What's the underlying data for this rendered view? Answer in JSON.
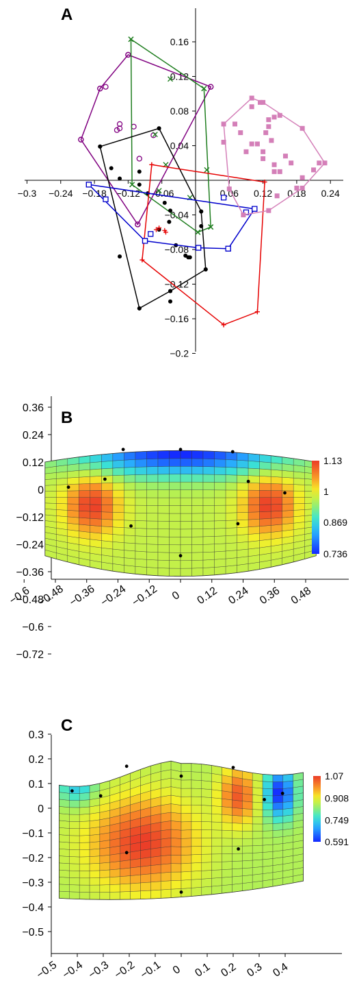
{
  "panels": {
    "a": "A",
    "b": "B",
    "c": "C"
  },
  "chart_data": [
    {
      "panel": "A",
      "type": "scatter",
      "xlim": [
        -0.3,
        0.3
      ],
      "ylim": [
        -0.2,
        0.2
      ],
      "x_ticks": [
        "−0.3",
        "−0.24",
        "−0.18",
        "−0.12",
        "−0.06",
        "0.06",
        "0.12",
        "0.18",
        "0.24"
      ],
      "x_tick_values": [
        -0.3,
        -0.24,
        -0.18,
        -0.12,
        -0.06,
        0.06,
        0.12,
        0.18,
        0.24
      ],
      "y_ticks": [
        "0.16",
        "0.12",
        "0.08",
        "0.04",
        "−0.04",
        "−0.08",
        "−0.12",
        "−0.16",
        "−0.2"
      ],
      "y_tick_values": [
        0.16,
        0.12,
        0.08,
        0.04,
        -0.04,
        -0.08,
        -0.12,
        -0.16,
        -0.2
      ],
      "series": [
        {
          "color": "#800080",
          "marker": "circle-open",
          "points": [
            [
              -0.204,
              0.047
            ],
            [
              -0.17,
              0.106
            ],
            [
              -0.16,
              0.108
            ],
            [
              -0.12,
              0.145
            ],
            [
              -0.14,
              0.058
            ],
            [
              -0.135,
              0.06
            ],
            [
              -0.135,
              0.065
            ],
            [
              -0.11,
              0.062
            ],
            [
              -0.1,
              0.025
            ],
            [
              -0.075,
              0.052
            ],
            [
              -0.103,
              -0.051
            ],
            [
              0.027,
              0.108
            ]
          ],
          "hull": [
            [
              -0.204,
              0.047
            ],
            [
              -0.17,
              0.106
            ],
            [
              -0.12,
              0.145
            ],
            [
              0.027,
              0.108
            ],
            [
              -0.103,
              -0.051
            ]
          ]
        },
        {
          "color": "#1e7d1e",
          "marker": "x",
          "points": [
            [
              -0.115,
              0.163
            ],
            [
              -0.045,
              0.117
            ],
            [
              0.015,
              0.106
            ],
            [
              -0.072,
              0.053
            ],
            [
              -0.053,
              0.018
            ],
            [
              -0.113,
              -0.005
            ],
            [
              -0.065,
              -0.012
            ],
            [
              -0.01,
              -0.02
            ],
            [
              0.02,
              0.012
            ],
            [
              0.027,
              -0.054
            ],
            [
              0.004,
              -0.06
            ]
          ],
          "hull": [
            [
              -0.115,
              0.163
            ],
            [
              0.015,
              0.106
            ],
            [
              0.027,
              -0.054
            ],
            [
              0.004,
              -0.06
            ],
            [
              -0.113,
              -0.005
            ]
          ]
        },
        {
          "color": "#000000",
          "marker": "dot",
          "points": [
            [
              -0.17,
              0.039
            ],
            [
              -0.135,
              -0.088
            ],
            [
              -0.1,
              -0.148
            ],
            [
              -0.065,
              0.06
            ],
            [
              -0.055,
              -0.026
            ],
            [
              -0.045,
              -0.035
            ],
            [
              -0.045,
              -0.128
            ],
            [
              -0.035,
              -0.075
            ],
            [
              -0.018,
              -0.087
            ],
            [
              -0.013,
              -0.089
            ],
            [
              -0.01,
              -0.089
            ],
            [
              0.01,
              -0.053
            ],
            [
              0.01,
              -0.036
            ],
            [
              0.018,
              -0.103
            ],
            [
              -0.045,
              -0.14
            ],
            [
              -0.15,
              0.014
            ],
            [
              -0.135,
              0.002
            ],
            [
              -0.1,
              0.01
            ],
            [
              -0.1,
              -0.005
            ],
            [
              -0.085,
              -0.015
            ],
            [
              -0.065,
              -0.057
            ],
            [
              -0.047,
              -0.048
            ]
          ],
          "hull": [
            [
              -0.17,
              0.039
            ],
            [
              -0.065,
              0.06
            ],
            [
              0.01,
              -0.036
            ],
            [
              0.018,
              -0.103
            ],
            [
              -0.045,
              -0.128
            ],
            [
              -0.1,
              -0.148
            ]
          ]
        },
        {
          "color": "#e60000",
          "marker": "plus",
          "points": [
            [
              -0.095,
              -0.092
            ],
            [
              -0.065,
              -0.055
            ],
            [
              -0.07,
              -0.057
            ],
            [
              -0.055,
              -0.058
            ],
            [
              -0.053,
              -0.06
            ],
            [
              -0.078,
              0.018
            ],
            [
              0.05,
              -0.167
            ],
            [
              0.11,
              -0.152
            ],
            [
              0.123,
              -0.002
            ]
          ],
          "hull": [
            [
              -0.078,
              0.018
            ],
            [
              0.123,
              -0.002
            ],
            [
              0.11,
              -0.152
            ],
            [
              0.05,
              -0.167
            ],
            [
              -0.095,
              -0.092
            ]
          ]
        },
        {
          "color": "#0000cc",
          "marker": "square-open",
          "points": [
            [
              -0.19,
              -0.005
            ],
            [
              -0.16,
              -0.022
            ],
            [
              -0.09,
              -0.07
            ],
            [
              -0.08,
              -0.062
            ],
            [
              0.005,
              -0.078
            ],
            [
              0.05,
              -0.02
            ],
            [
              0.09,
              -0.037
            ],
            [
              0.105,
              -0.033
            ],
            [
              0.058,
              -0.079
            ]
          ],
          "hull": [
            [
              -0.19,
              -0.005
            ],
            [
              0.105,
              -0.033
            ],
            [
              0.058,
              -0.079
            ],
            [
              0.005,
              -0.078
            ],
            [
              -0.09,
              -0.07
            ]
          ]
        },
        {
          "color": "#d47fb8",
          "marker": "square",
          "points": [
            [
              0.07,
              0.065
            ],
            [
              0.08,
              0.055
            ],
            [
              0.09,
              0.033
            ],
            [
              0.1,
              0.042
            ],
            [
              0.11,
              0.042
            ],
            [
              0.1,
              0.085
            ],
            [
              0.115,
              0.09
            ],
            [
              0.13,
              0.07
            ],
            [
              0.14,
              0.073
            ],
            [
              0.15,
              0.075
            ],
            [
              0.13,
              0.062
            ],
            [
              0.125,
              0.055
            ],
            [
              0.135,
              0.046
            ],
            [
              0.12,
              0.025
            ],
            [
              0.12,
              0.033
            ],
            [
              0.14,
              0.018
            ],
            [
              0.14,
              0.01
            ],
            [
              0.15,
              0.01
            ],
            [
              0.16,
              0.028
            ],
            [
              0.17,
              0.02
            ],
            [
              0.19,
              0.003
            ],
            [
              0.21,
              0.012
            ],
            [
              0.22,
              0.02
            ],
            [
              0.18,
              -0.009
            ],
            [
              0.145,
              -0.018
            ],
            [
              0.05,
              0.044
            ]
          ],
          "hull": [
            [
              0.05,
              0.065
            ],
            [
              0.1,
              0.095
            ],
            [
              0.12,
              0.09
            ],
            [
              0.19,
              0.06
            ],
            [
              0.23,
              0.02
            ],
            [
              0.19,
              -0.009
            ],
            [
              0.13,
              -0.035
            ],
            [
              0.085,
              -0.04
            ],
            [
              0.06,
              -0.01
            ]
          ]
        }
      ]
    },
    {
      "panel": "B",
      "type": "heatmap",
      "xlim": [
        -0.6,
        0.54
      ],
      "ylim": [
        -0.72,
        0.42
      ],
      "x_ticks": [
        "−0.6",
        "−0.48",
        "−0.36",
        "−0.24",
        "−0.12",
        "0",
        "0.12",
        "0.24",
        "0.36",
        "0.48"
      ],
      "x_tick_values": [
        -0.6,
        -0.48,
        -0.36,
        -0.24,
        -0.12,
        0,
        0.12,
        0.24,
        0.36,
        0.48
      ],
      "y_ticks": [
        "0.36",
        "0.24",
        "0.12",
        "0",
        "−0.12",
        "−0.24",
        "−0.36",
        "−0.48",
        "−0.6",
        "−0.72"
      ],
      "y_tick_values": [
        0.36,
        0.24,
        0.12,
        0,
        -0.12,
        -0.24,
        -0.36,
        -0.48,
        -0.6,
        -0.72
      ],
      "colorbar": {
        "labels": [
          "1.13",
          "1",
          "0.869",
          "0.736"
        ],
        "values": [
          1.13,
          1.0,
          0.869,
          0.736
        ],
        "min": 0.736,
        "max": 1.13
      },
      "grid": {
        "x_range": [
          -0.52,
          0.52
        ],
        "y_bottom": -0.38,
        "y_top": 0.17,
        "curve_top": 0.05,
        "curve_bottom": 0.09
      },
      "hotspots": [
        {
          "x": -0.34,
          "y": -0.07,
          "value": 1.13,
          "sx": 0.07,
          "sy": 0.09
        },
        {
          "x": 0.34,
          "y": -0.07,
          "value": 1.13,
          "sx": 0.07,
          "sy": 0.09
        },
        {
          "x": 0.0,
          "y": 0.16,
          "value": 0.736,
          "sx": 0.28,
          "sy": 0.07
        }
      ],
      "base_value": 0.97,
      "landmarks": [
        [
          -0.43,
          0.01
        ],
        [
          -0.29,
          0.045
        ],
        [
          -0.22,
          0.175
        ],
        [
          -0.19,
          -0.16
        ],
        [
          0.0,
          0.175
        ],
        [
          0.0,
          -0.29
        ],
        [
          0.2,
          0.165
        ],
        [
          0.22,
          -0.15
        ],
        [
          0.26,
          0.035
        ],
        [
          0.4,
          -0.015
        ]
      ]
    },
    {
      "panel": "C",
      "type": "heatmap",
      "xlim": [
        -0.5,
        0.45
      ],
      "ylim": [
        -0.55,
        0.35
      ],
      "x_ticks": [
        "−0.5",
        "−0.4",
        "−0.3",
        "−0.2",
        "−0.1",
        "0",
        "0.1",
        "0.2",
        "0.3",
        "0.4"
      ],
      "x_tick_values": [
        -0.5,
        -0.4,
        -0.3,
        -0.2,
        -0.1,
        0,
        0.1,
        0.2,
        0.3,
        0.4
      ],
      "y_ticks": [
        "0.3",
        "0.2",
        "0.1",
        "0",
        "−0.1",
        "−0.2",
        "−0.3",
        "−0.4",
        "−0.5"
      ],
      "y_tick_values": [
        0.3,
        0.2,
        0.1,
        0,
        -0.1,
        -0.2,
        -0.3,
        -0.4,
        -0.5
      ],
      "colorbar": {
        "labels": [
          "1.07",
          "0.908",
          "0.749",
          "0.591"
        ],
        "values": [
          1.07,
          0.908,
          0.749,
          0.591
        ],
        "min": 0.591,
        "max": 1.07
      },
      "grid": {
        "x_range": [
          -0.47,
          0.47
        ],
        "y_bottom": -0.36,
        "y_top": 0.2,
        "curve_top": 0.05,
        "curve_bottom": 0.03
      },
      "hotspots": [
        {
          "x": -0.15,
          "y": -0.14,
          "value": 1.07,
          "sx": 0.14,
          "sy": 0.13
        },
        {
          "x": 0.22,
          "y": 0.05,
          "value": 1.04,
          "sx": 0.05,
          "sy": 0.08
        },
        {
          "x": 0.38,
          "y": 0.06,
          "value": 0.591,
          "sx": 0.04,
          "sy": 0.07
        },
        {
          "x": -0.4,
          "y": 0.1,
          "value": 0.72,
          "sx": 0.05,
          "sy": 0.06
        }
      ],
      "base_value": 0.86,
      "landmarks": [
        [
          -0.42,
          0.07
        ],
        [
          -0.31,
          0.05
        ],
        [
          -0.21,
          0.17
        ],
        [
          -0.21,
          -0.18
        ],
        [
          0.0,
          0.13
        ],
        [
          0.0,
          -0.34
        ],
        [
          0.2,
          0.165
        ],
        [
          0.22,
          -0.165
        ],
        [
          0.32,
          0.035
        ],
        [
          0.39,
          0.06
        ]
      ]
    }
  ]
}
